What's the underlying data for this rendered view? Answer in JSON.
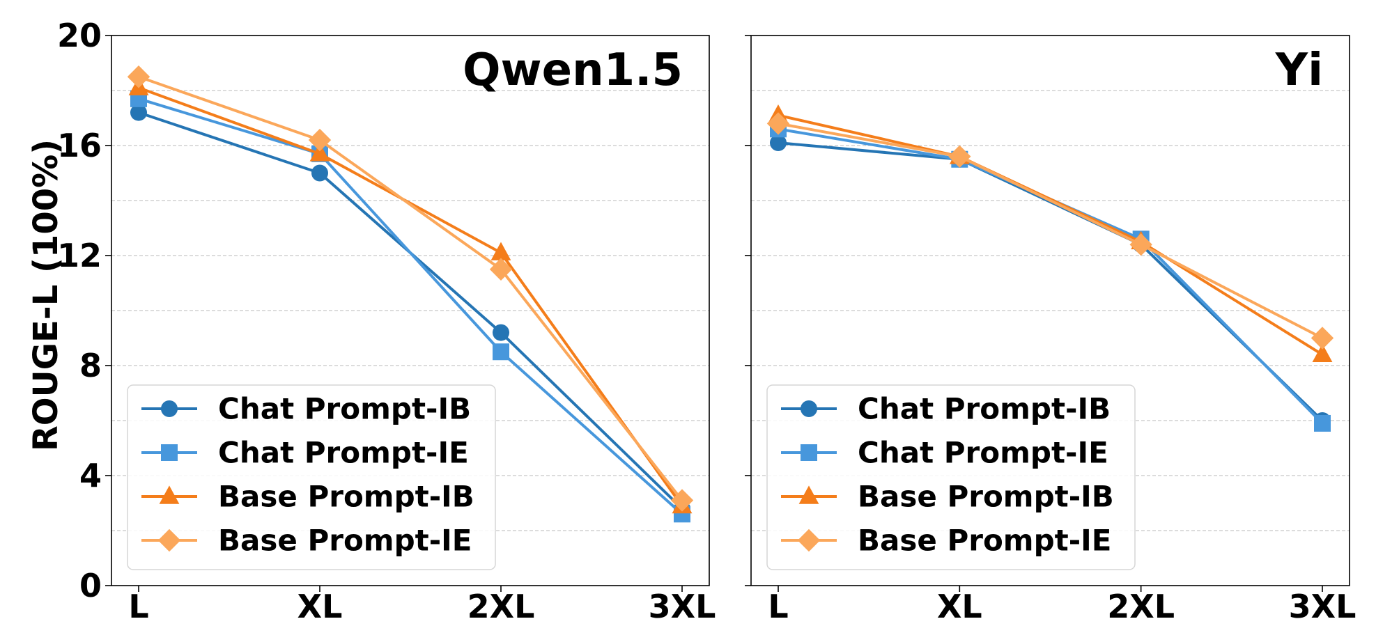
{
  "chart_data": [
    {
      "type": "line",
      "title": "Qwen1.5",
      "xlabel": "",
      "ylabel": "ROUGE-L (100%)",
      "categories": [
        "L",
        "XL",
        "2XL",
        "3XL"
      ],
      "ylim": [
        0,
        20
      ],
      "yticks": [
        0,
        4,
        8,
        12,
        16,
        20
      ],
      "grid": true,
      "legend_position": "lower-left",
      "series": [
        {
          "name": "Chat Prompt-IB",
          "values": [
            17.2,
            15.0,
            9.2,
            2.8
          ],
          "color": "#2575b4",
          "marker": "circle"
        },
        {
          "name": "Chat Prompt-IE",
          "values": [
            17.7,
            15.7,
            8.5,
            2.6
          ],
          "color": "#4797dc",
          "marker": "square"
        },
        {
          "name": "Base Prompt-IB",
          "values": [
            18.1,
            15.7,
            12.1,
            2.9
          ],
          "color": "#f47d1a",
          "marker": "triangle"
        },
        {
          "name": "Base Prompt-IE",
          "values": [
            18.5,
            16.2,
            11.5,
            3.1
          ],
          "color": "#fba75a",
          "marker": "diamond"
        }
      ]
    },
    {
      "type": "line",
      "title": "Yi",
      "xlabel": "",
      "ylabel": "",
      "categories": [
        "L",
        "XL",
        "2XL",
        "3XL"
      ],
      "ylim": [
        0,
        20
      ],
      "yticks": [
        0,
        4,
        8,
        12,
        16,
        20
      ],
      "grid": true,
      "legend_position": "lower-left",
      "series": [
        {
          "name": "Chat Prompt-IB",
          "values": [
            16.1,
            15.5,
            12.4,
            6.0
          ],
          "color": "#2575b4",
          "marker": "circle"
        },
        {
          "name": "Chat Prompt-IE",
          "values": [
            16.6,
            15.5,
            12.6,
            5.9
          ],
          "color": "#4797dc",
          "marker": "square"
        },
        {
          "name": "Base Prompt-IB",
          "values": [
            17.1,
            15.6,
            12.5,
            8.4
          ],
          "color": "#f47d1a",
          "marker": "triangle"
        },
        {
          "name": "Base Prompt-IE",
          "values": [
            16.8,
            15.6,
            12.4,
            9.0
          ],
          "color": "#fba75a",
          "marker": "diamond"
        }
      ]
    }
  ]
}
